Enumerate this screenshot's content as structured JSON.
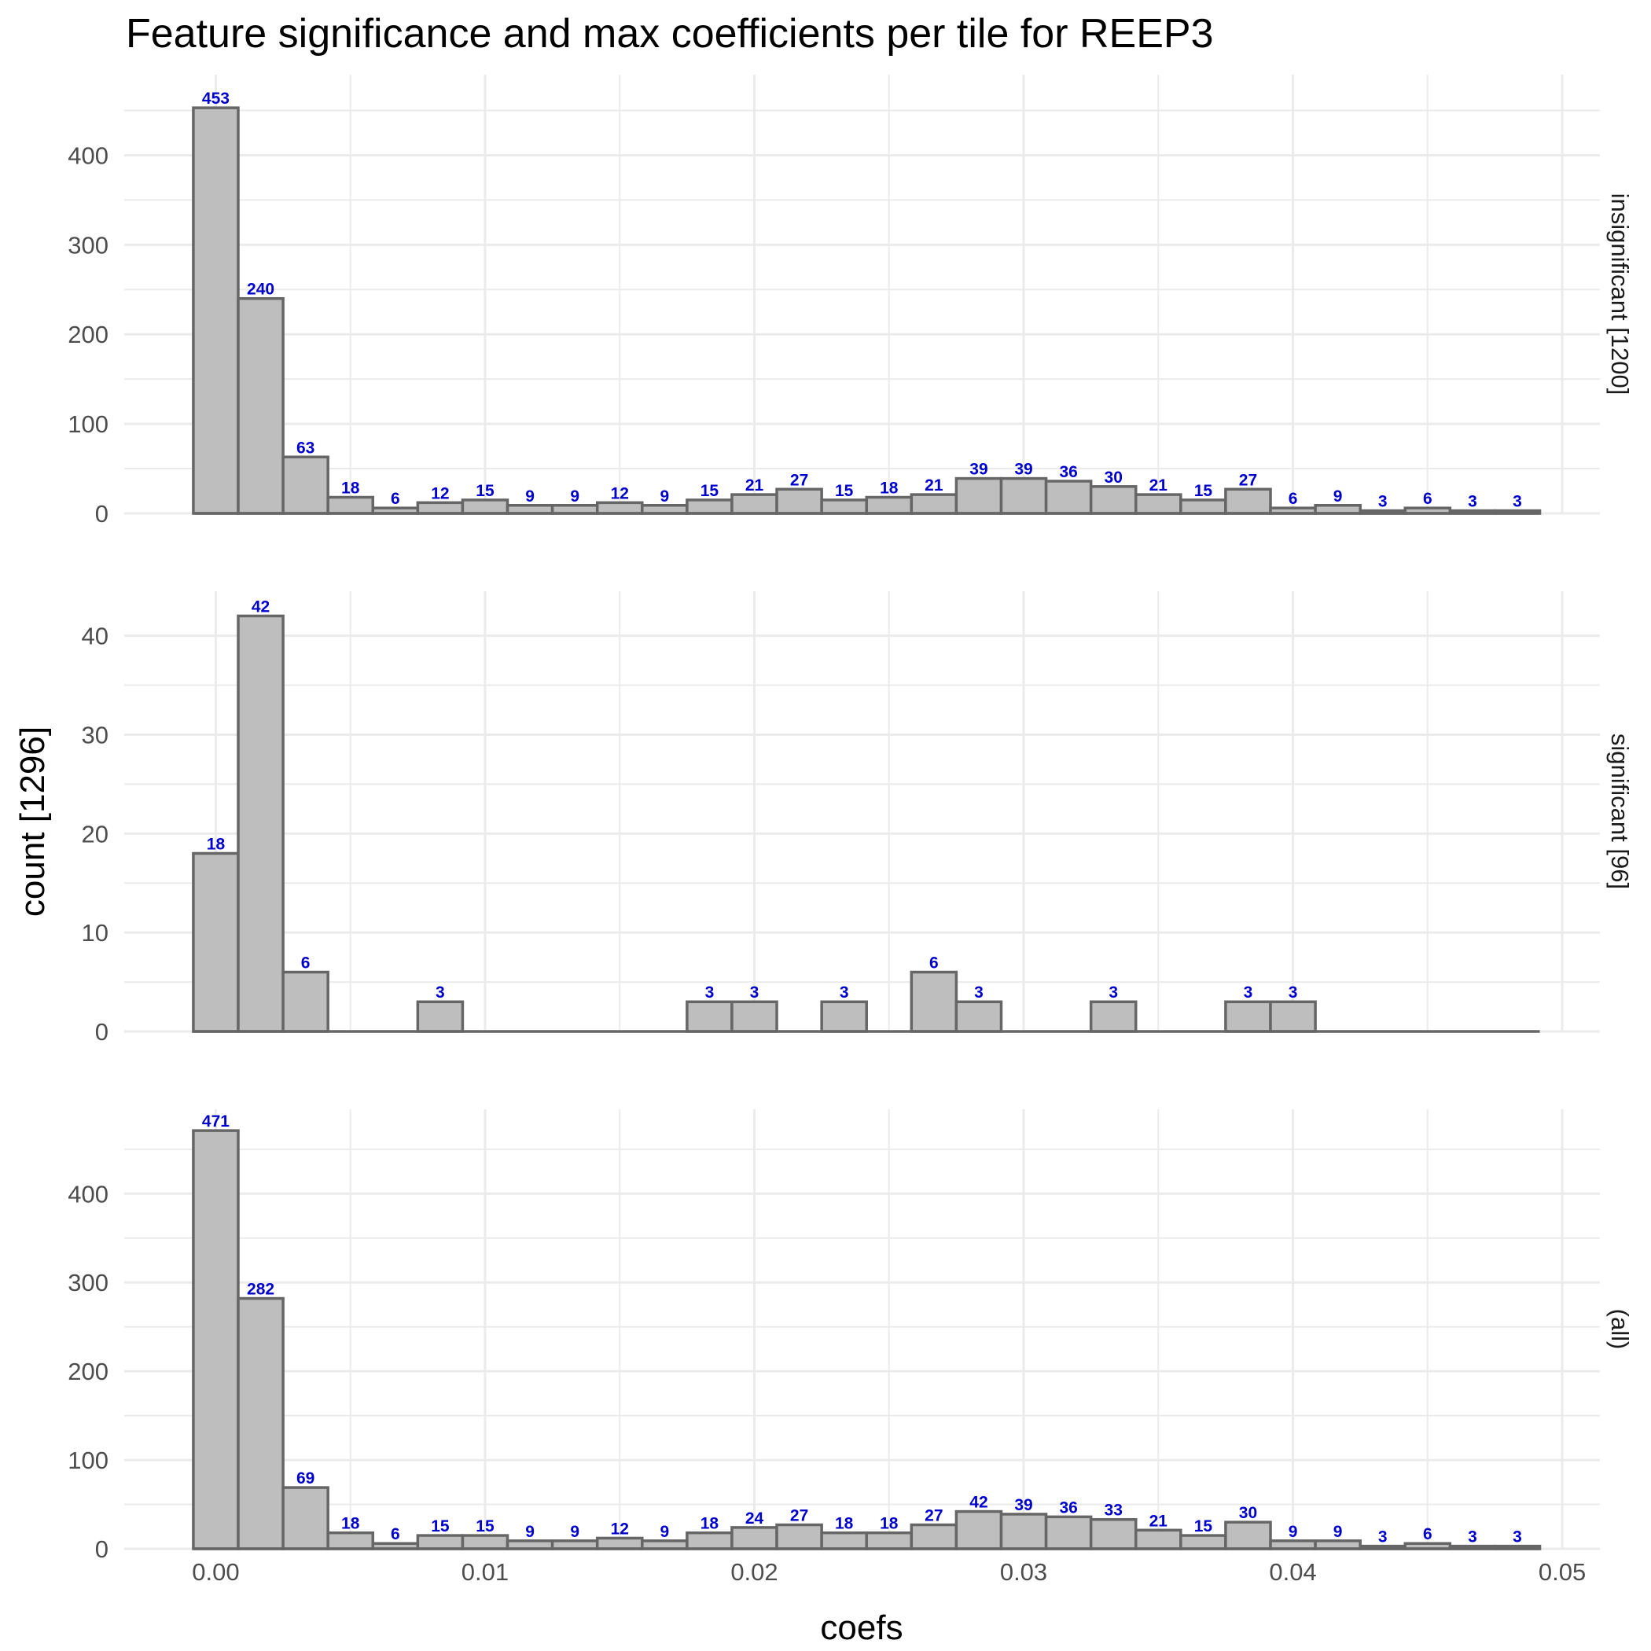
{
  "chart_data": {
    "type": "bar",
    "title": "Feature significance and max coefficients per tile for REEP3",
    "xlabel": "coefs",
    "ylabel": "count [1296]",
    "xlim": [
      -0.0034,
      0.0514
    ],
    "x_ticks": [
      "0.00",
      "0.01",
      "0.02",
      "0.03",
      "0.04",
      "0.05"
    ],
    "x_tick_values": [
      0,
      0.01,
      0.02,
      0.03,
      0.04,
      0.05
    ],
    "bin_start": -0.0008333,
    "bin_width": 0.0016667,
    "bin_centers": [
      0.0,
      0.00167,
      0.00333,
      0.005,
      0.00667,
      0.00833,
      0.01,
      0.01167,
      0.01333,
      0.015,
      0.01667,
      0.01833,
      0.02,
      0.02167,
      0.02333,
      0.025,
      0.02667,
      0.02833,
      0.03,
      0.03167,
      0.03333,
      0.035,
      0.03667,
      0.03833,
      0.04,
      0.04167,
      0.04333,
      0.045,
      0.04667,
      0.04833
    ],
    "facets": [
      {
        "strip": "insignificant [1200]",
        "ylim": [
          0,
          490
        ],
        "y_ticks": [
          0,
          100,
          200,
          300,
          400
        ],
        "values": [
          453,
          240,
          63,
          18,
          6,
          12,
          15,
          9,
          9,
          12,
          9,
          15,
          21,
          27,
          15,
          18,
          21,
          39,
          39,
          36,
          30,
          21,
          15,
          27,
          6,
          9,
          3,
          6,
          3,
          3
        ]
      },
      {
        "strip": "significant [96]",
        "ylim": [
          0,
          44.5
        ],
        "y_ticks": [
          0,
          10,
          20,
          30,
          40
        ],
        "values": [
          18,
          42,
          6,
          0,
          0,
          3,
          0,
          0,
          0,
          0,
          0,
          3,
          3,
          0,
          3,
          0,
          6,
          3,
          0,
          0,
          3,
          0,
          0,
          3,
          3,
          0,
          0,
          0,
          0,
          0
        ]
      },
      {
        "strip": "(all)",
        "ylim": [
          0,
          495
        ],
        "y_ticks": [
          0,
          100,
          200,
          300,
          400
        ],
        "values": [
          471,
          282,
          69,
          18,
          6,
          15,
          15,
          9,
          9,
          12,
          9,
          18,
          24,
          27,
          18,
          18,
          27,
          42,
          39,
          36,
          33,
          21,
          15,
          30,
          9,
          9,
          3,
          6,
          3,
          3
        ]
      }
    ],
    "grid": true,
    "legend": "none",
    "colors": {
      "bar_fill": "#bebebe",
      "bar_outline": "#666666",
      "data_label": "#0000cc",
      "grid": "#ebebeb"
    }
  }
}
